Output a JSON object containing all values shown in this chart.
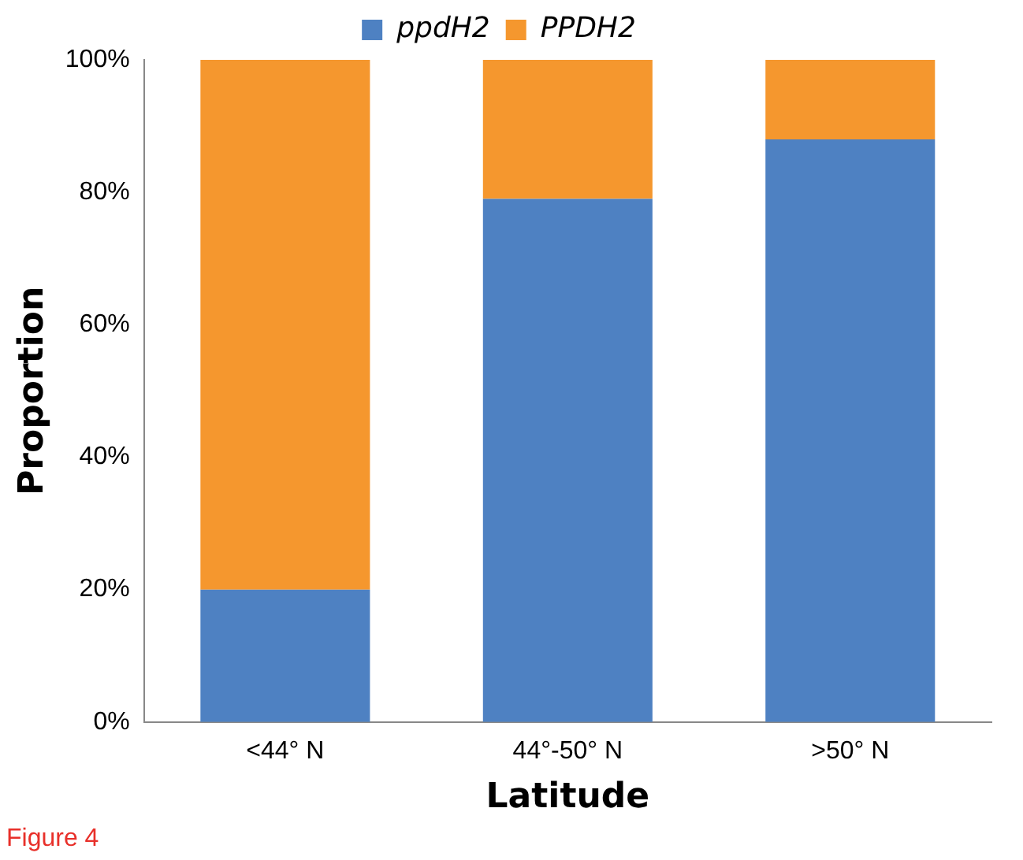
{
  "chart_data": {
    "type": "bar",
    "stacked": true,
    "xlabel": "Latitude",
    "ylabel": "Proportion",
    "categories": [
      "<44° N",
      "44°-50° N",
      ">50° N"
    ],
    "series": [
      {
        "name": "ppdH2",
        "color": "#4e81c2",
        "values": [
          20,
          79,
          88
        ]
      },
      {
        "name": "PPDH2",
        "color": "#f5972e",
        "values": [
          80,
          21,
          12
        ]
      }
    ],
    "ylim": [
      0,
      100
    ],
    "yticks": [
      {
        "value": 0,
        "label": "0%"
      },
      {
        "value": 20,
        "label": "20%"
      },
      {
        "value": 40,
        "label": "40%"
      },
      {
        "value": 60,
        "label": "60%"
      },
      {
        "value": 80,
        "label": "80%"
      },
      {
        "value": 100,
        "label": "100%"
      }
    ],
    "grid": false,
    "legend": "top",
    "annotations": [
      "Figure 4"
    ]
  }
}
